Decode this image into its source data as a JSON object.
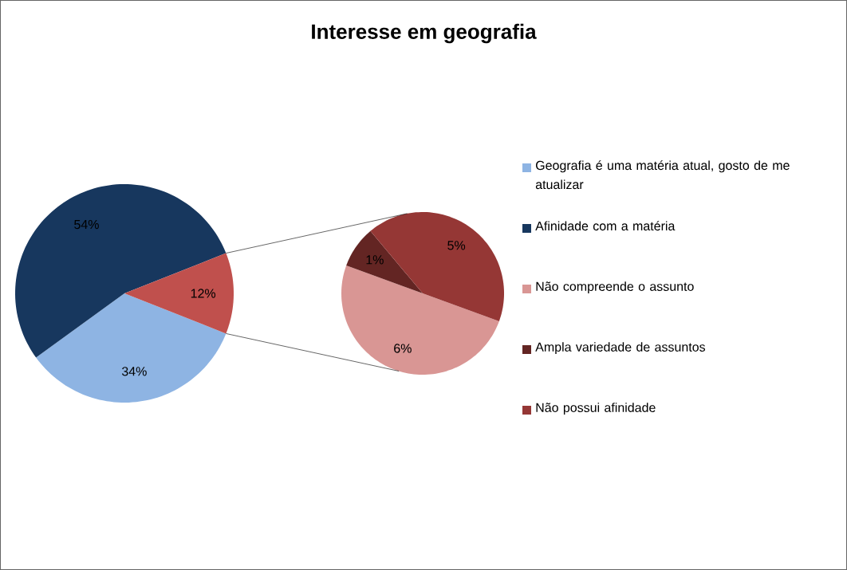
{
  "chart_data": [
    {
      "type": "pie",
      "title": "Interesse em geografia",
      "categories": [
        "Geografia é uma matéria atual, gosto de me atualizar",
        "Afinidade com a matéria",
        null
      ],
      "values": [
        34,
        54,
        12
      ],
      "colors": [
        "#8eb4e3",
        "#17375e",
        "#c0504d"
      ],
      "value_labels": [
        "34%",
        "54%",
        "12%"
      ],
      "legend": "right"
    },
    {
      "type": "pie",
      "categories": [
        "Não compreende o assunto",
        "Ampla variedade de assuntos",
        "Não possui afinidade"
      ],
      "values": [
        6,
        1,
        5
      ],
      "colors": [
        "#d99694",
        "#632523",
        "#953735"
      ],
      "value_labels": [
        "6%",
        "1%",
        "5%"
      ],
      "legend": "right"
    }
  ]
}
